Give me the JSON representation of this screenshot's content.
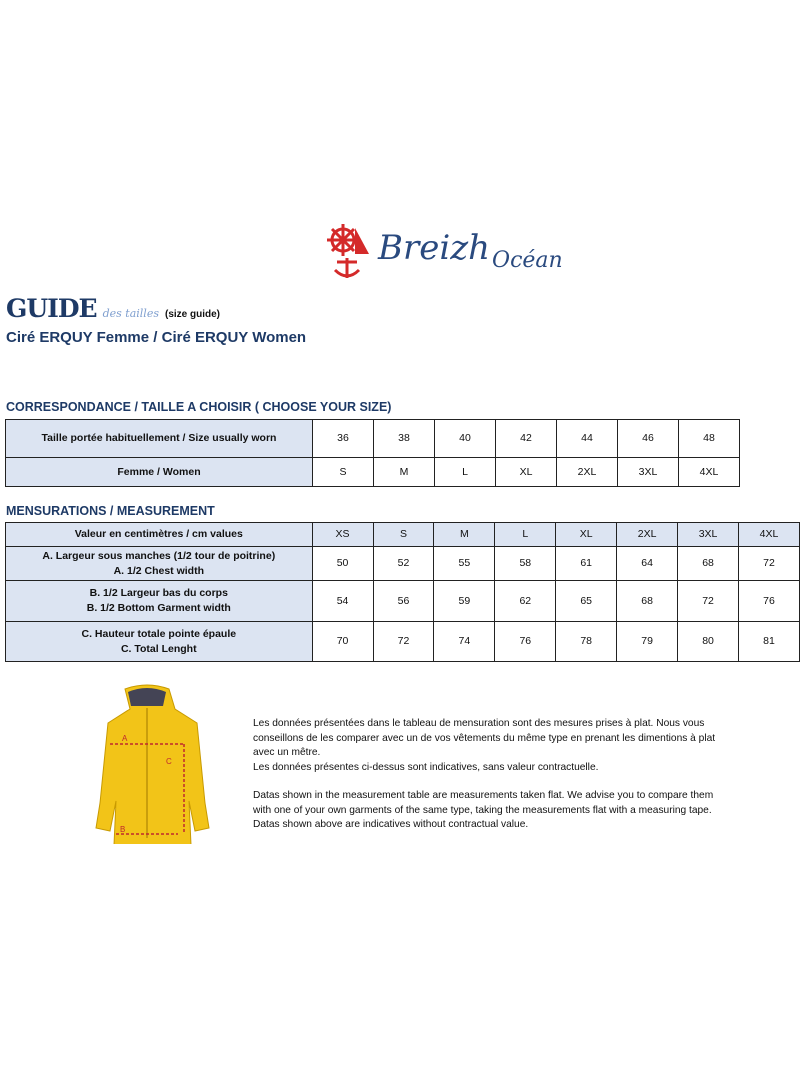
{
  "brand": {
    "name": "Breizh",
    "name2": "Océan"
  },
  "header": {
    "guide": "GUIDE",
    "des_tailles": "des tailles",
    "size_guide": "(size guide)",
    "subtitle": "Ciré ERQUY Femme / Ciré ERQUY Women"
  },
  "correspondance": {
    "title": "CORRESPONDANCE / TAILLE A CHOISIR ( CHOOSE YOUR SIZE)",
    "rows": [
      {
        "label": "Taille portée habituellement / Size usually worn",
        "values": [
          "36",
          "38",
          "40",
          "42",
          "44",
          "46",
          "48"
        ]
      },
      {
        "label": "Femme / Women",
        "values": [
          "S",
          "M",
          "L",
          "XL",
          "2XL",
          "3XL",
          "4XL"
        ]
      }
    ]
  },
  "measurement": {
    "title": "MENSURATIONS / MEASUREMENT",
    "header": {
      "label": "Valeur en centimètres / cm values",
      "values": [
        "XS",
        "S",
        "M",
        "L",
        "XL",
        "2XL",
        "3XL",
        "4XL"
      ]
    },
    "rows": [
      {
        "label1": "A. Largeur sous manches (1/2 tour de poitrine)",
        "label2": "A. 1/2 Chest width",
        "values": [
          "50",
          "52",
          "55",
          "58",
          "61",
          "64",
          "68",
          "72"
        ]
      },
      {
        "label1": "B. 1/2 Largeur bas du corps",
        "label2": "B. 1/2 Bottom Garment width",
        "values": [
          "54",
          "56",
          "59",
          "62",
          "65",
          "68",
          "72",
          "76"
        ]
      },
      {
        "label1": "C. Hauteur totale pointe épaule",
        "label2": "C. Total Lenght",
        "values": [
          "70",
          "72",
          "74",
          "76",
          "78",
          "79",
          "80",
          "81"
        ]
      }
    ]
  },
  "diagram": {
    "labels": [
      "A",
      "B",
      "C"
    ]
  },
  "notes": {
    "fr1": "Les données présentées dans le tableau de mensuration sont des mesures prises à plat. Nous vous conseillons de les comparer avec un de vos vêtements du même type en prenant les dimentions à plat avec un mêtre.",
    "fr2": "Les données présentes ci-dessus sont indicatives, sans valeur contractuelle.",
    "en1": "Datas shown in the measurement table are measurements taken flat. We advise you to compare them with one of your own garments of the same type, taking the measurements flat with a measuring tape.",
    "en2": "Datas shown above are indicatives without contractual value."
  }
}
